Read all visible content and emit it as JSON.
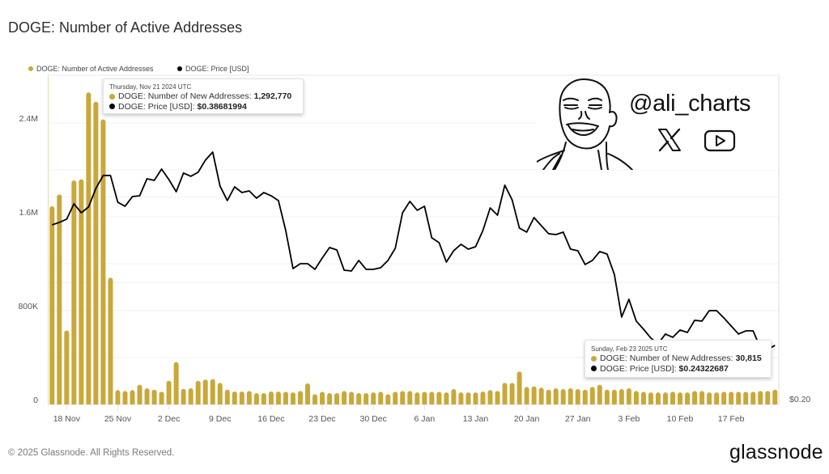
{
  "page": {
    "title": "DOGE: Number of Active Addresses"
  },
  "legend": [
    {
      "label": "DOGE: Number of Active Addresses",
      "color": "#C9A83A"
    },
    {
      "label": "DOGE: Price [USD]",
      "color": "#000000"
    }
  ],
  "colors": {
    "bar": "#C9A83A",
    "line": "#000000",
    "grid": "#f0f0f0",
    "axis_left": "#e6dcae",
    "border": "#e0e0e0"
  },
  "tooltips": [
    {
      "date": "Thursday, Nov 21 2024 UTC",
      "rows": [
        {
          "label": "DOGE: Number of New Addresses:",
          "value": "1,292,770",
          "color": "#C9A83A"
        },
        {
          "label": "DOGE: Price [USD]:",
          "value": "$0.38681994",
          "color": "#000000"
        }
      ]
    },
    {
      "date": "Sunday, Feb 23 2025 UTC",
      "rows": [
        {
          "label": "DOGE: Number of New Addresses:",
          "value": "30,815",
          "color": "#C9A83A"
        },
        {
          "label": "DOGE: Price [USD]:",
          "value": "$0.24322687",
          "color": "#000000"
        }
      ]
    }
  ],
  "watermark": {
    "handle": "@ali_charts",
    "icons": [
      "x-logo-icon",
      "youtube-icon"
    ]
  },
  "footer": {
    "copyright": "© 2025 Glassnode. All Rights Reserved.",
    "brand": "glassnode"
  },
  "chart_data": {
    "type": "bar",
    "title": "DOGE: Number of Active Addresses",
    "xlabel": "",
    "ylabel": "",
    "ylim": [
      0,
      2807000
    ],
    "y2lim": [
      0.19946,
      0.6017
    ],
    "y2scale": "log",
    "grid": true,
    "legend_position": "top-left",
    "yticks_left": [
      {
        "label": "2.4M",
        "value": 2400000
      },
      {
        "label": "1.6M",
        "value": 1600000
      },
      {
        "label": "800K",
        "value": 800000
      },
      {
        "label": "0",
        "value": 0
      }
    ],
    "ygrid_left": [
      400000,
      800000,
      1200000,
      1600000,
      2000000,
      2400000
    ],
    "yticks_right": [
      {
        "label": "$0.20",
        "value": 0.2
      }
    ],
    "ygrid_right": [
      0.3,
      0.4
    ],
    "x_ticks": [
      {
        "label": "18 Nov",
        "index": 2
      },
      {
        "label": "25 Nov",
        "index": 9
      },
      {
        "label": "2 Dec",
        "index": 16
      },
      {
        "label": "9 Dec",
        "index": 23
      },
      {
        "label": "16 Dec",
        "index": 30
      },
      {
        "label": "23 Dec",
        "index": 37
      },
      {
        "label": "30 Dec",
        "index": 44
      },
      {
        "label": "6 Jan",
        "index": 51
      },
      {
        "label": "13 Jan",
        "index": 58
      },
      {
        "label": "20 Jan",
        "index": 65
      },
      {
        "label": "27 Jan",
        "index": 72
      },
      {
        "label": "3 Feb",
        "index": 79
      },
      {
        "label": "10 Feb",
        "index": 86
      },
      {
        "label": "17 Feb",
        "index": 93
      }
    ],
    "categories": [
      "2024-11-16",
      "2024-11-17",
      "2024-11-18",
      "2024-11-19",
      "2024-11-20",
      "2024-11-21",
      "2024-11-22",
      "2024-11-23",
      "2024-11-24",
      "2024-11-25",
      "2024-11-26",
      "2024-11-27",
      "2024-11-28",
      "2024-11-29",
      "2024-11-30",
      "2024-12-01",
      "2024-12-02",
      "2024-12-03",
      "2024-12-04",
      "2024-12-05",
      "2024-12-06",
      "2024-12-07",
      "2024-12-08",
      "2024-12-09",
      "2024-12-10",
      "2024-12-11",
      "2024-12-12",
      "2024-12-13",
      "2024-12-14",
      "2024-12-15",
      "2024-12-16",
      "2024-12-17",
      "2024-12-18",
      "2024-12-19",
      "2024-12-20",
      "2024-12-21",
      "2024-12-22",
      "2024-12-23",
      "2024-12-24",
      "2024-12-25",
      "2024-12-26",
      "2024-12-27",
      "2024-12-28",
      "2024-12-29",
      "2024-12-30",
      "2024-12-31",
      "2025-01-01",
      "2025-01-02",
      "2025-01-03",
      "2025-01-04",
      "2025-01-05",
      "2025-01-06",
      "2025-01-07",
      "2025-01-08",
      "2025-01-09",
      "2025-01-10",
      "2025-01-11",
      "2025-01-12",
      "2025-01-13",
      "2025-01-14",
      "2025-01-15",
      "2025-01-16",
      "2025-01-17",
      "2025-01-18",
      "2025-01-19",
      "2025-01-20",
      "2025-01-21",
      "2025-01-22",
      "2025-01-23",
      "2025-01-24",
      "2025-01-25",
      "2025-01-26",
      "2025-01-27",
      "2025-01-28",
      "2025-01-29",
      "2025-01-30",
      "2025-01-31",
      "2025-02-01",
      "2025-02-02",
      "2025-02-03",
      "2025-02-04",
      "2025-02-05",
      "2025-02-06",
      "2025-02-07",
      "2025-02-08",
      "2025-02-09",
      "2025-02-10",
      "2025-02-11",
      "2025-02-12",
      "2025-02-13",
      "2025-02-14",
      "2025-02-15",
      "2025-02-16",
      "2025-02-17",
      "2025-02-18",
      "2025-02-19",
      "2025-02-20",
      "2025-02-21",
      "2025-02-22",
      "2025-02-23"
    ],
    "series": [
      {
        "name": "DOGE: Number of Active Addresses",
        "type": "bar",
        "axis": "left",
        "color": "#C9A83A",
        "values": [
          1690000,
          1790000,
          630000,
          1910000,
          1920000,
          2660000,
          2580000,
          2430000,
          1080000,
          122000,
          115000,
          122000,
          168000,
          138000,
          126000,
          108000,
          202000,
          361000,
          133000,
          138000,
          202000,
          212000,
          216000,
          184000,
          126000,
          110000,
          110000,
          115000,
          97000,
          97000,
          110000,
          110000,
          108000,
          103000,
          115000,
          179000,
          87000,
          108000,
          97000,
          97000,
          115000,
          108000,
          97000,
          97000,
          103000,
          108000,
          87000,
          108000,
          115000,
          115000,
          103000,
          108000,
          108000,
          108000,
          103000,
          131000,
          103000,
          103000,
          103000,
          110000,
          122000,
          115000,
          184000,
          184000,
          280000,
          149000,
          154000,
          143000,
          126000,
          138000,
          131000,
          138000,
          131000,
          126000,
          149000,
          168000,
          126000,
          126000,
          131000,
          138000,
          115000,
          108000,
          103000,
          103000,
          103000,
          108000,
          103000,
          103000,
          115000,
          115000,
          103000,
          103000,
          108000,
          108000,
          108000,
          108000,
          108000,
          115000,
          115000,
          126000
        ]
      },
      {
        "name": "DOGE: Price [USD]",
        "type": "line",
        "axis": "right",
        "color": "#000000",
        "values": [
          0.3643,
          0.3673,
          0.3713,
          0.3909,
          0.3794,
          0.3868,
          0.4116,
          0.4299,
          0.4299,
          0.393,
          0.3877,
          0.4005,
          0.4016,
          0.4252,
          0.4229,
          0.4393,
          0.424,
          0.4071,
          0.4334,
          0.4287,
          0.4345,
          0.4526,
          0.465,
          0.415,
          0.3952,
          0.4138,
          0.406,
          0.4082,
          0.3984,
          0.406,
          0.4016,
          0.3952,
          0.3574,
          0.3146,
          0.3198,
          0.3198,
          0.3138,
          0.3259,
          0.3376,
          0.3349,
          0.3129,
          0.3121,
          0.3233,
          0.3138,
          0.3138,
          0.3155,
          0.3233,
          0.3367,
          0.3794,
          0.3941,
          0.3825,
          0.3877,
          0.3488,
          0.3432,
          0.3215,
          0.334,
          0.3413,
          0.3358,
          0.3385,
          0.3574,
          0.3856,
          0.3763,
          0.4161,
          0.3963,
          0.3604,
          0.3555,
          0.3733,
          0.3633,
          0.3536,
          0.3526,
          0.3555,
          0.3358,
          0.334,
          0.3189,
          0.3233,
          0.3331,
          0.3304,
          0.3087,
          0.2674,
          0.2838,
          0.2638,
          0.2567,
          0.2492,
          0.2445,
          0.2526,
          0.2498,
          0.256,
          0.2539,
          0.2645,
          0.2638,
          0.2732,
          0.2732,
          0.2666,
          0.2595,
          0.2526,
          0.2553,
          0.2553,
          0.2412,
          0.2399,
          0.2432
        ]
      }
    ]
  }
}
